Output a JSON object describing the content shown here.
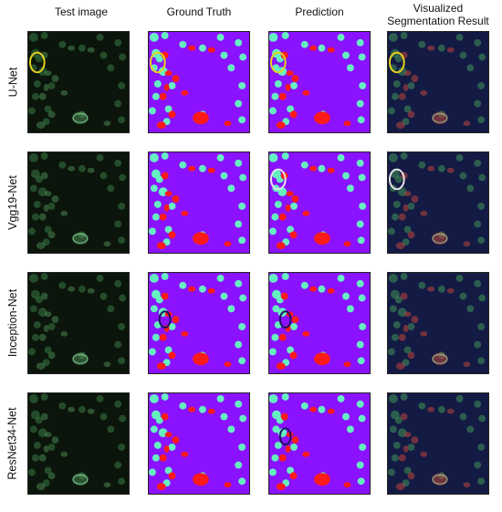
{
  "columns": [
    "Test image",
    "Ground Truth",
    "Prediction",
    "Visualized\nSegmentation Result"
  ],
  "rows": [
    "U-Net",
    "Vgg19-Net",
    "Inception-Net",
    "ResNet34-Net"
  ],
  "colors": {
    "background_gt": "#8a12ff",
    "cell_class_a": "#66f0c2",
    "cell_class_b": "#ff1a1a",
    "micrograph_bg": "#0b150b",
    "overlay_bg": "#131a44",
    "highlight_yellow": "#e6d21a",
    "highlight_white": "#e6e6e6",
    "highlight_navy": "#1c1060"
  }
}
